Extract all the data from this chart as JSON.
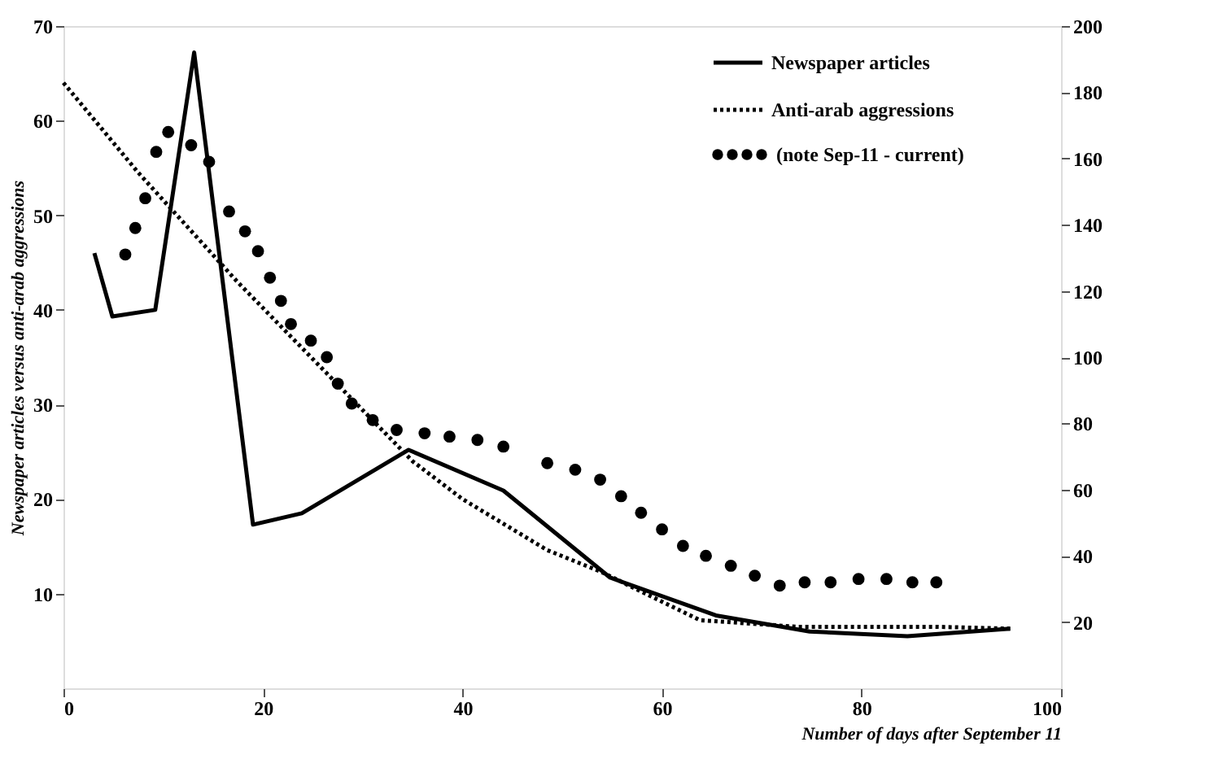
{
  "chart_data": {
    "type": "line",
    "xlabel": "Number of days after September 11",
    "ylabel": "Newspaper articles versus anti-arab aggressions",
    "xlim": [
      0,
      100
    ],
    "xticks": [
      0,
      20,
      40,
      60,
      80,
      100
    ],
    "ylim": [
      0,
      70
    ],
    "yticks": [
      10,
      20,
      30,
      40,
      50,
      60,
      70
    ],
    "y2lim": [
      0,
      200
    ],
    "y2ticks": [
      20,
      40,
      60,
      80,
      100,
      120,
      140,
      160,
      180,
      200
    ],
    "grid": false,
    "legend": "top right",
    "series": [
      {
        "name": "Newspaper articles",
        "line_style": "solid",
        "color": "#000000",
        "x": [
          3.1,
          4.9,
          9.2,
          13.1,
          19.0,
          23.9,
          34.6,
          44.1,
          54.8,
          65.4,
          74.8,
          84.6,
          94.9
        ],
        "values": [
          46.0,
          39.3,
          40.0,
          67.2,
          17.3,
          18.5,
          25.2,
          20.9,
          11.7,
          7.7,
          6.0,
          5.5,
          6.3
        ]
      },
      {
        "name": "Anti-arab aggressions",
        "line_style": "dotted",
        "color": "#000000",
        "x": [
          0,
          7.5,
          17.4,
          35,
          40,
          48.5,
          53.9,
          63.8,
          73.6,
          87.4,
          95
        ],
        "values": [
          64,
          54.5,
          43,
          24,
          20,
          14.6,
          12.3,
          7.2,
          6.5,
          6.5,
          6.3
        ]
      },
      {
        "name": "(note Sep-11 - current)",
        "type": "scatter",
        "marker": "circle",
        "axis": "y2",
        "color": "#000000",
        "x": [
          6.2,
          7.2,
          8.2,
          9.3,
          10.5,
          12.8,
          14.6,
          16.6,
          18.2,
          19.5,
          20.7,
          21.8,
          22.8,
          24.8,
          26.4,
          27.5,
          28.9,
          31,
          33.4,
          36.2,
          38.7,
          41.5,
          44.1,
          48.5,
          51.3,
          53.8,
          55.9,
          57.9,
          60,
          62.1,
          64.4,
          66.9,
          69.3,
          71.8,
          74.3,
          76.9,
          79.7,
          82.5,
          85.1,
          87.5
        ],
        "values": [
          131,
          139,
          148,
          162,
          168,
          164,
          159,
          144,
          138,
          132,
          124,
          117,
          110,
          105,
          100,
          92,
          86,
          81,
          78,
          77,
          76,
          75,
          73,
          68,
          66,
          63,
          58,
          53,
          48,
          43,
          40,
          37,
          34,
          31,
          32,
          32,
          33,
          33,
          32,
          32
        ]
      }
    ]
  }
}
